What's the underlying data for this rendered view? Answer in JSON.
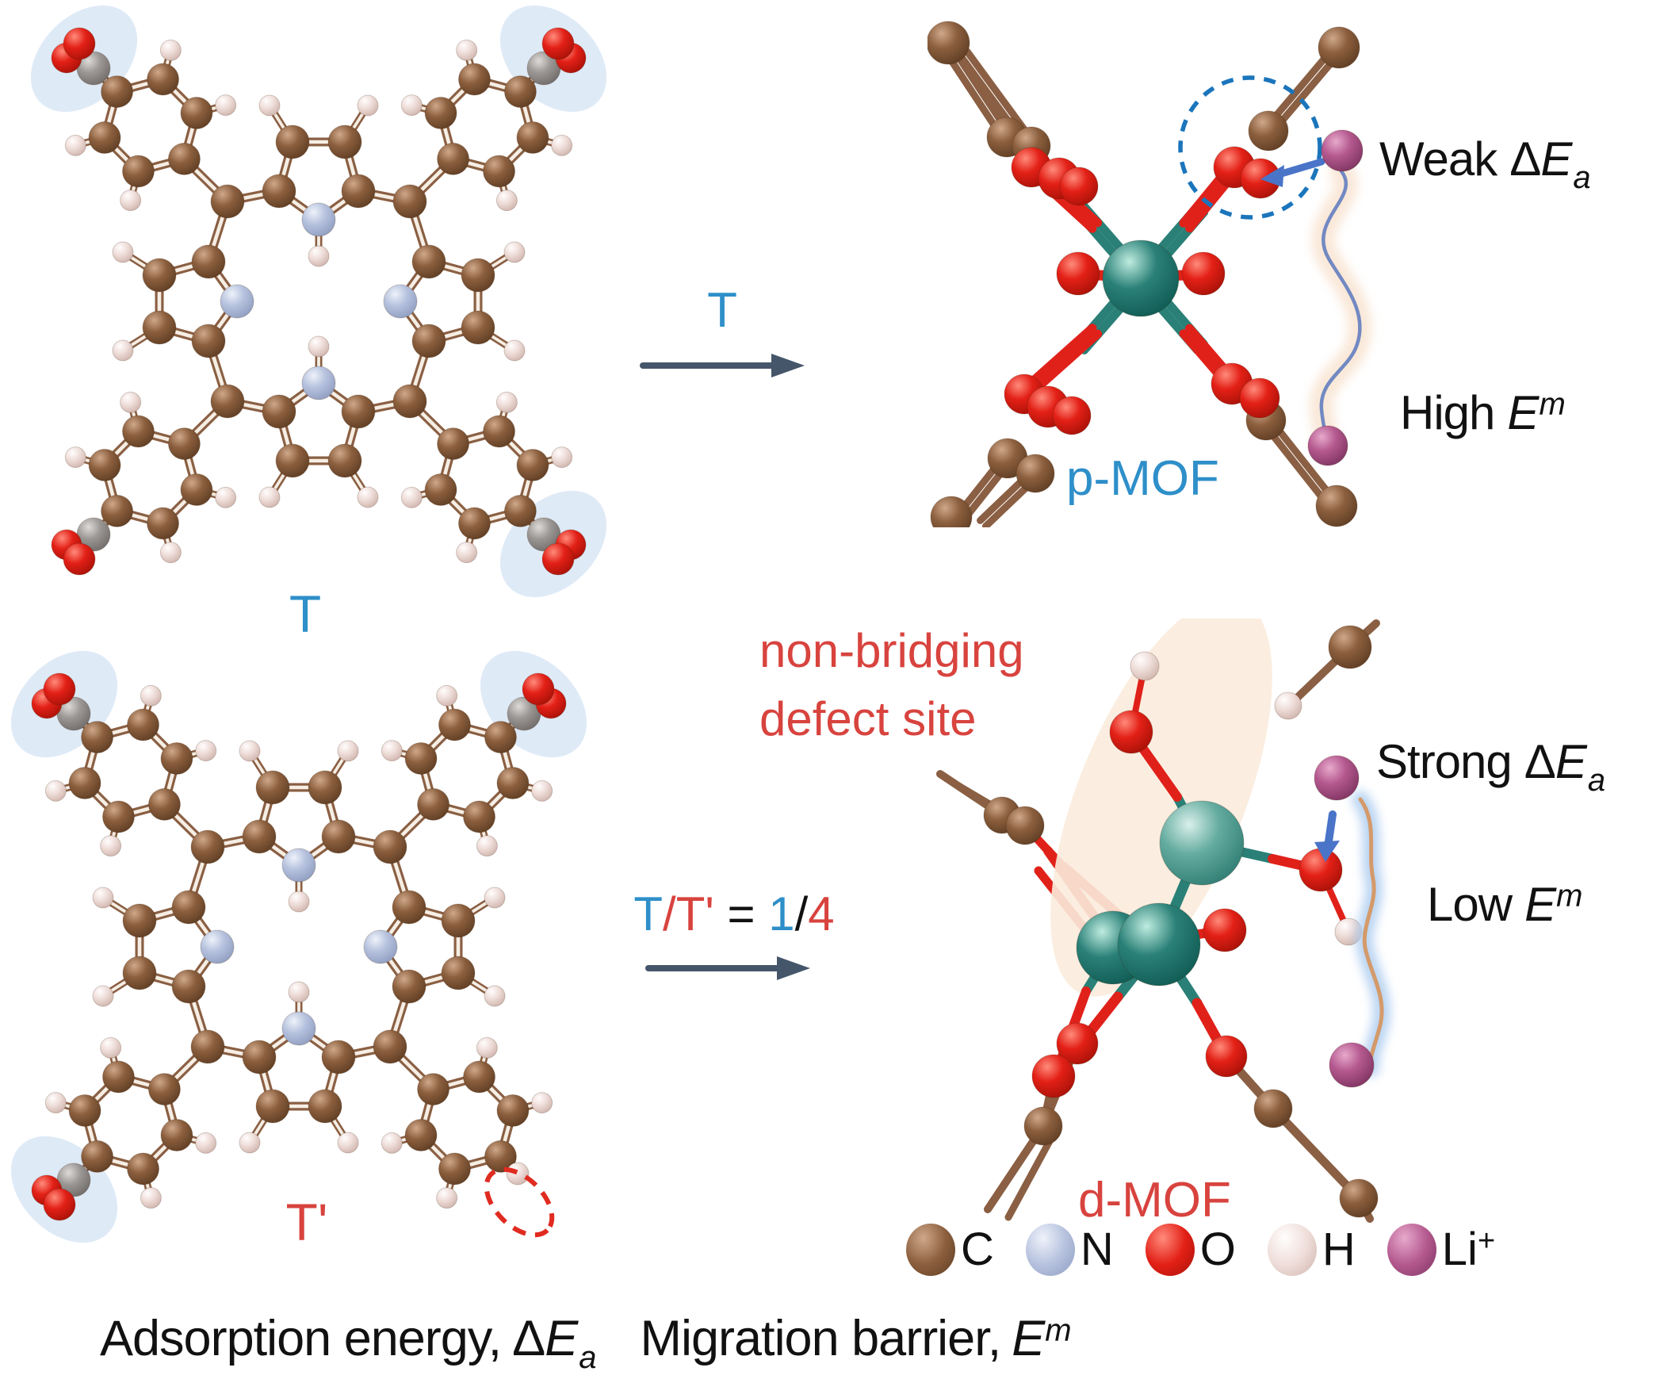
{
  "colors": {
    "blue_label": "#2e8fc9",
    "red_label": "#d8433e",
    "text_black": "#111111",
    "reaction_arrow": "#45566b",
    "ion_arrow_blue": "#4a74c8",
    "adsorption_circle_blue": "#1b75bb",
    "linker_halo_blue": "#dce8f6",
    "defect_halo_peach": "#fbecdd",
    "migration_path_blue": "#7289c2",
    "migration_path_tan": "#d49a6a",
    "metal_teal": "#2a8077",
    "carboxyl_gray": "#9b9795"
  },
  "linkers": {
    "pristine": {
      "label": "T"
    },
    "defective": {
      "label": "T'"
    }
  },
  "reactions": {
    "top": {
      "label": "T"
    },
    "bottom": {
      "parts": [
        {
          "text": "T",
          "color": "#2e8fc9"
        },
        {
          "text": "/",
          "color": "#d8433e"
        },
        {
          "text": "T'",
          "color": "#d8433e"
        },
        {
          "text": " = ",
          "color": "#111111"
        },
        {
          "text": "1",
          "color": "#2e8fc9"
        },
        {
          "text": "/",
          "color": "#111111"
        },
        {
          "text": "4",
          "color": "#d8433e"
        }
      ]
    }
  },
  "mofs": {
    "pristine": {
      "label": "p-MOF",
      "adsorption": {
        "prefix": "Weak",
        "delta": "Δ",
        "symbol": "E",
        "sub": "a"
      },
      "migration": {
        "prefix": "High",
        "symbol": "E",
        "sup": "m"
      }
    },
    "defective": {
      "label": "d-MOF",
      "callout_line1": "non-bridging",
      "callout_line2": "defect site",
      "adsorption": {
        "prefix": "Strong",
        "delta": "Δ",
        "symbol": "E",
        "sub": "a"
      },
      "migration": {
        "prefix": "Low",
        "symbol": "E",
        "sup": "m"
      }
    }
  },
  "legend": {
    "items": [
      {
        "symbol": "C",
        "sup": "",
        "hi": "#cfa88a",
        "mid": "#8b5f3e",
        "lo": "#5e3c22"
      },
      {
        "symbol": "N",
        "sup": "",
        "hi": "#eef2fa",
        "mid": "#b6c2de",
        "lo": "#8e9cbf"
      },
      {
        "symbol": "O",
        "sup": "",
        "hi": "#ff8b7b",
        "mid": "#e32017",
        "lo": "#a61107"
      },
      {
        "symbol": "H",
        "sup": "",
        "hi": "#fffdfd",
        "mid": "#efdeda",
        "lo": "#cfb3ab"
      },
      {
        "symbol": "Li",
        "sup": "+",
        "hi": "#e7a9cb",
        "mid": "#b4598f",
        "lo": "#7e3360"
      }
    ]
  },
  "caption": {
    "adsorption": {
      "text": "Adsorption energy,",
      "delta": "Δ",
      "symbol": "E",
      "sub": "a"
    },
    "migration": {
      "text": "Migration barrier,",
      "symbol": "E",
      "sup": "m"
    }
  }
}
